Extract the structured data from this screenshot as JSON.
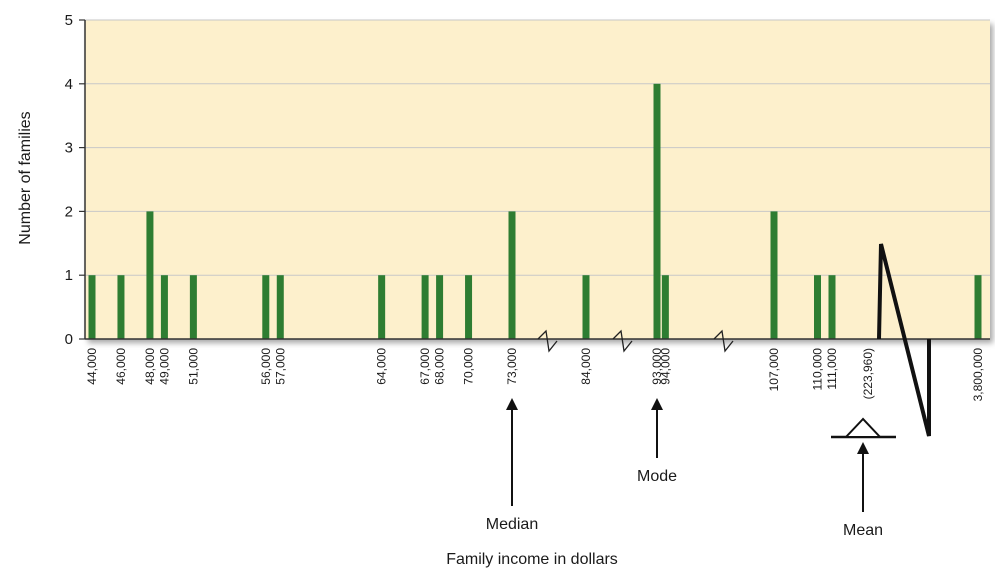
{
  "chart_data": {
    "type": "bar",
    "xlabel": "Family income in dollars",
    "ylabel": "Number of families",
    "ylim": [
      0,
      5
    ],
    "y_ticks": [
      "0",
      "1",
      "2",
      "3",
      "4",
      "5"
    ],
    "grid": true,
    "categories": [
      "44,000",
      "46,000",
      "48,000",
      "49,000",
      "51,000",
      "56,000",
      "57,000",
      "64,000",
      "67,000",
      "68,000",
      "70,000",
      "73,000",
      "84,000",
      "93,000",
      "94,000",
      "107,000",
      "110,000",
      "111,000",
      "3,800,000"
    ],
    "values": [
      1,
      1,
      2,
      1,
      1,
      1,
      1,
      1,
      1,
      1,
      1,
      2,
      1,
      4,
      1,
      2,
      1,
      1,
      1
    ],
    "mean_label": "(223,960)",
    "annotations": {
      "median": "Median",
      "mode": "Mode",
      "mean": "Mean"
    },
    "colors": {
      "bar": "#2e7d32",
      "plot_background": "#fdf0cc",
      "gridline": "#c8c8c8"
    }
  }
}
